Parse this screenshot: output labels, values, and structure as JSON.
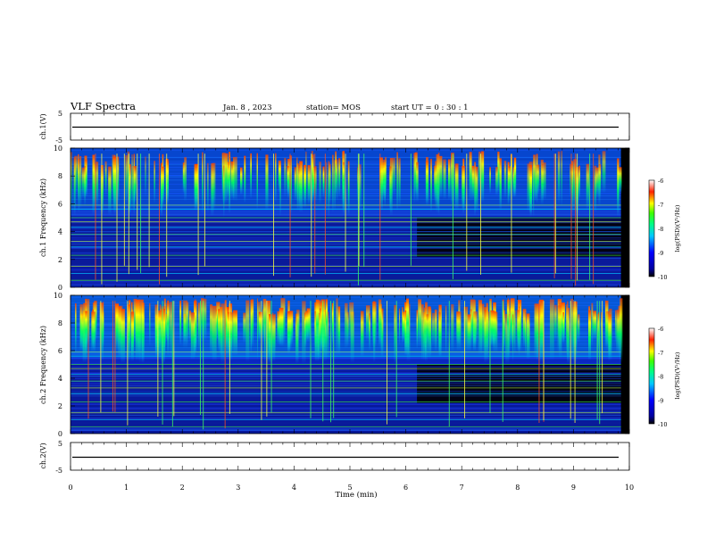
{
  "header": {
    "title": "VLF Spectra",
    "date": "Jan. 8 , 2023",
    "station": "station= MOS",
    "start": "start UT = 0 : 30 : 1"
  },
  "chart_data": [
    {
      "type": "line",
      "ylabel": "ch.1(V)",
      "ylim": [
        -5,
        5
      ],
      "yticks": [
        "5",
        "-5"
      ],
      "series": [
        {
          "values_approx": -0.5
        }
      ]
    },
    {
      "type": "heatmap",
      "ylabel": "ch.1  Frequency  (kHz)",
      "ylim": [
        0,
        10
      ],
      "yticks": [
        "0",
        "2",
        "4",
        "6",
        "8",
        "10"
      ],
      "colorbar": {
        "label": "log(PSD)(V²/Hz)",
        "ticks": [
          "-6",
          "-7",
          "-8",
          "-9",
          "-10"
        ],
        "range": [
          -10,
          -6
        ]
      }
    },
    {
      "type": "heatmap",
      "ylabel": "ch.2  Frequency  (kHz)",
      "ylim": [
        0,
        10
      ],
      "yticks": [
        "0",
        "2",
        "4",
        "6",
        "8",
        "10"
      ],
      "colorbar": {
        "label": "log(PSD)(V²/Hz)",
        "ticks": [
          "-6",
          "-7",
          "-8",
          "-9",
          "-10"
        ],
        "range": [
          -10,
          -6
        ]
      }
    },
    {
      "type": "line",
      "ylabel": "ch.2(V)",
      "ylim": [
        -5,
        5
      ],
      "yticks": [
        "5",
        "-5"
      ],
      "series": [
        {
          "values_approx": -0.5
        }
      ]
    }
  ],
  "xaxis": {
    "label": "Time  (min)",
    "xlim": [
      0,
      10
    ],
    "ticks": [
      "0",
      "1",
      "2",
      "3",
      "4",
      "5",
      "6",
      "7",
      "8",
      "9",
      "10"
    ]
  }
}
